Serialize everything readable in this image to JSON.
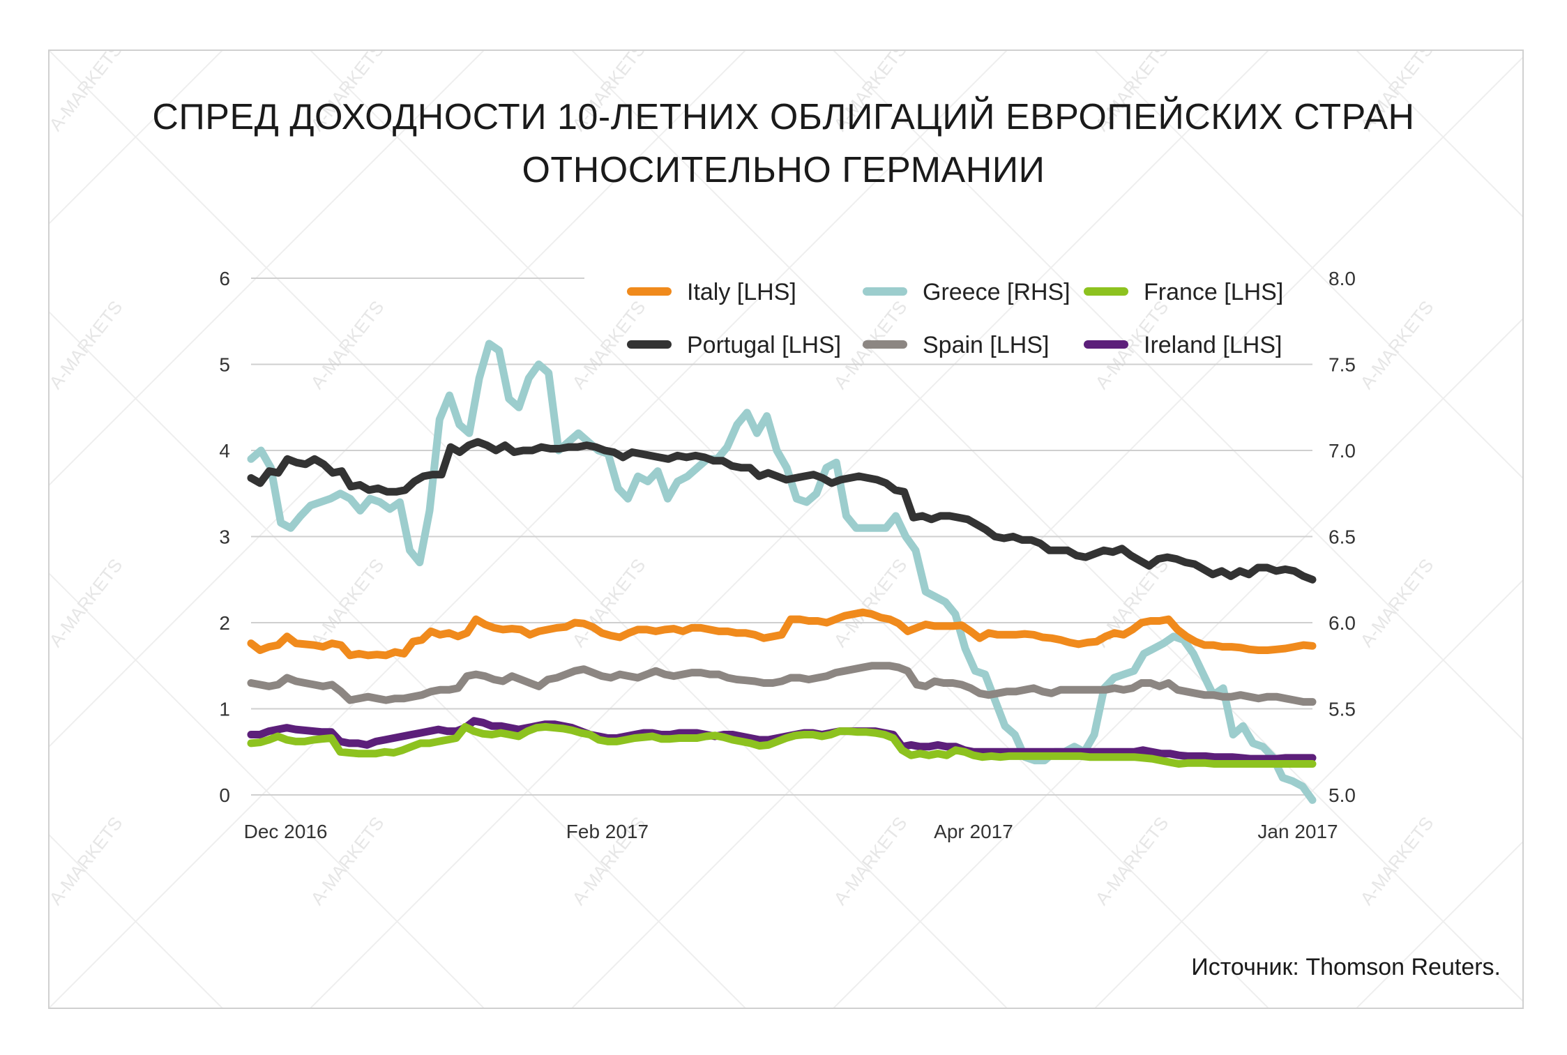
{
  "title": {
    "line1": "СПРЕД ДОХОДНОСТИ 10-ЛЕТНИХ ОБЛИГАЦИЙ ЕВРОПЕЙСКИХ СТРАН",
    "line2": "ОТНОСИТЕЛЬНО ГЕРМАНИИ"
  },
  "source": "Источник: Thomson Reuters.",
  "watermark": "A-MARKETS",
  "chart_data": {
    "type": "line",
    "title": "СПРЕД ДОХОДНОСТИ 10-ЛЕТНИХ ОБЛИГАЦИЙ ЕВРОПЕЙСКИХ СТРАН ОТНОСИТЕЛЬНО ГЕРМАНИИ",
    "x_ticks": [
      "Dec 2016",
      "Feb 2017",
      "Apr 2017",
      "Jan 2017"
    ],
    "x_tick_positions": [
      0.05,
      0.34,
      0.67,
      1.0
    ],
    "y_left_ticks": [
      "0",
      "1",
      "2",
      "3",
      "4",
      "5",
      "6"
    ],
    "y_right_ticks": [
      "5.0",
      "5.5",
      "6.0",
      "6.5",
      "7.0",
      "7.5",
      "8.0"
    ],
    "ylim_left": [
      0,
      6
    ],
    "ylim_right": [
      5.0,
      8.0
    ],
    "grid": true,
    "legend_position": "top-right",
    "series": [
      {
        "name": "Italy [LHS]",
        "axis": "left",
        "color": "#f08a1c",
        "values": [
          1.76,
          1.68,
          1.72,
          1.74,
          1.84,
          1.76,
          1.75,
          1.74,
          1.72,
          1.76,
          1.74,
          1.62,
          1.64,
          1.62,
          1.63,
          1.62,
          1.66,
          1.64,
          1.78,
          1.8,
          1.9,
          1.86,
          1.88,
          1.84,
          1.88,
          2.04,
          1.98,
          1.94,
          1.92,
          1.93,
          1.92,
          1.86,
          1.9,
          1.92,
          1.94,
          1.95,
          2.0,
          1.99,
          1.95,
          1.88,
          1.85,
          1.83,
          1.88,
          1.92,
          1.92,
          1.9,
          1.92,
          1.93,
          1.9,
          1.94,
          1.94,
          1.92,
          1.9,
          1.9,
          1.88,
          1.88,
          1.86,
          1.82,
          1.84,
          1.86,
          2.04,
          2.04,
          2.02,
          2.02,
          2.0,
          2.04,
          2.08,
          2.1,
          2.12,
          2.1,
          2.06,
          2.04,
          1.99,
          1.9,
          1.94,
          1.98,
          1.96,
          1.96,
          1.96,
          1.97,
          1.9,
          1.82,
          1.88,
          1.86,
          1.86,
          1.86,
          1.87,
          1.86,
          1.83,
          1.82,
          1.8,
          1.77,
          1.75,
          1.77,
          1.78,
          1.84,
          1.88,
          1.86,
          1.92,
          2.0,
          2.02,
          2.02,
          2.04,
          1.92,
          1.84,
          1.78,
          1.74,
          1.74,
          1.72,
          1.72,
          1.71,
          1.69,
          1.68,
          1.68,
          1.69,
          1.7,
          1.72,
          1.74,
          1.73
        ]
      },
      {
        "name": "Greece [RHS]",
        "axis": "right",
        "color": "#9ccdcd",
        "values": [
          6.95,
          7.0,
          6.9,
          6.58,
          6.55,
          6.62,
          6.68,
          6.7,
          6.72,
          6.75,
          6.72,
          6.65,
          6.72,
          6.7,
          6.66,
          6.7,
          6.42,
          6.35,
          6.65,
          7.18,
          7.32,
          7.15,
          7.1,
          7.42,
          7.62,
          7.58,
          7.3,
          7.25,
          7.42,
          7.5,
          7.45,
          7.0,
          7.05,
          7.1,
          7.05,
          7.0,
          6.98,
          6.78,
          6.72,
          6.85,
          6.82,
          6.88,
          6.72,
          6.82,
          6.85,
          6.9,
          6.95,
          6.95,
          7.02,
          7.15,
          7.22,
          7.1,
          7.2,
          7.0,
          6.9,
          6.72,
          6.7,
          6.75,
          6.9,
          6.93,
          6.62,
          6.55,
          6.55,
          6.55,
          6.55,
          6.62,
          6.5,
          6.42,
          6.18,
          6.15,
          6.12,
          6.05,
          5.85,
          5.72,
          5.7,
          5.55,
          5.4,
          5.35,
          5.22,
          5.2,
          5.2,
          5.25,
          5.25,
          5.28,
          5.25,
          5.35,
          5.62,
          5.68,
          5.7,
          5.72,
          5.82,
          5.85,
          5.88,
          5.92,
          5.9,
          5.82,
          5.7,
          5.58,
          5.62,
          5.35,
          5.4,
          5.3,
          5.28,
          5.22,
          5.1,
          5.08,
          5.05,
          4.97
        ]
      },
      {
        "name": "France [LHS]",
        "axis": "left",
        "color": "#8dc21f",
        "values": [
          0.6,
          0.61,
          0.64,
          0.68,
          0.64,
          0.62,
          0.62,
          0.64,
          0.65,
          0.66,
          0.5,
          0.49,
          0.48,
          0.48,
          0.48,
          0.5,
          0.49,
          0.52,
          0.56,
          0.6,
          0.6,
          0.62,
          0.64,
          0.66,
          0.79,
          0.74,
          0.71,
          0.7,
          0.72,
          0.7,
          0.68,
          0.74,
          0.78,
          0.79,
          0.78,
          0.77,
          0.75,
          0.72,
          0.7,
          0.64,
          0.62,
          0.62,
          0.64,
          0.66,
          0.67,
          0.68,
          0.65,
          0.65,
          0.66,
          0.66,
          0.66,
          0.68,
          0.69,
          0.67,
          0.64,
          0.62,
          0.6,
          0.57,
          0.58,
          0.62,
          0.66,
          0.69,
          0.7,
          0.7,
          0.68,
          0.7,
          0.74,
          0.74,
          0.73,
          0.73,
          0.72,
          0.7,
          0.66,
          0.52,
          0.46,
          0.48,
          0.46,
          0.48,
          0.46,
          0.52,
          0.5,
          0.46,
          0.44,
          0.45,
          0.44,
          0.45,
          0.45,
          0.45,
          0.45,
          0.45,
          0.45,
          0.45,
          0.45,
          0.45,
          0.44,
          0.44,
          0.44,
          0.44,
          0.44,
          0.44,
          0.43,
          0.42,
          0.4,
          0.38,
          0.36,
          0.37,
          0.37,
          0.37,
          0.36,
          0.36,
          0.36,
          0.36,
          0.36,
          0.36,
          0.36,
          0.36,
          0.36,
          0.36,
          0.36,
          0.36
        ]
      },
      {
        "name": "Portugal [LHS]",
        "axis": "left",
        "color": "#333333",
        "values": [
          3.68,
          3.62,
          3.76,
          3.74,
          3.9,
          3.86,
          3.84,
          3.9,
          3.84,
          3.74,
          3.76,
          3.58,
          3.6,
          3.54,
          3.56,
          3.52,
          3.52,
          3.54,
          3.64,
          3.7,
          3.72,
          3.72,
          4.04,
          3.98,
          4.06,
          4.1,
          4.06,
          4.0,
          4.06,
          3.98,
          4.0,
          4.0,
          4.04,
          4.02,
          4.02,
          4.04,
          4.04,
          4.06,
          4.04,
          4.0,
          3.98,
          3.92,
          3.98,
          3.96,
          3.94,
          3.92,
          3.9,
          3.94,
          3.92,
          3.94,
          3.92,
          3.88,
          3.88,
          3.82,
          3.8,
          3.8,
          3.7,
          3.74,
          3.7,
          3.66,
          3.68,
          3.7,
          3.72,
          3.68,
          3.62,
          3.66,
          3.68,
          3.7,
          3.68,
          3.66,
          3.62,
          3.54,
          3.52,
          3.22,
          3.24,
          3.2,
          3.24,
          3.24,
          3.22,
          3.2,
          3.14,
          3.08,
          3.0,
          2.98,
          3.0,
          2.96,
          2.96,
          2.92,
          2.84,
          2.84,
          2.84,
          2.78,
          2.76,
          2.8,
          2.84,
          2.82,
          2.86,
          2.78,
          2.72,
          2.66,
          2.74,
          2.76,
          2.74,
          2.7,
          2.68,
          2.62,
          2.56,
          2.6,
          2.54,
          2.6,
          2.56,
          2.64,
          2.64,
          2.6,
          2.62,
          2.6,
          2.54,
          2.5
        ]
      },
      {
        "name": "Spain [LHS]",
        "axis": "left",
        "color": "#8c8682",
        "values": [
          1.3,
          1.28,
          1.26,
          1.28,
          1.36,
          1.32,
          1.3,
          1.28,
          1.26,
          1.28,
          1.2,
          1.1,
          1.12,
          1.14,
          1.12,
          1.1,
          1.12,
          1.12,
          1.14,
          1.16,
          1.2,
          1.22,
          1.22,
          1.24,
          1.38,
          1.4,
          1.38,
          1.34,
          1.32,
          1.38,
          1.34,
          1.3,
          1.26,
          1.34,
          1.36,
          1.4,
          1.44,
          1.46,
          1.42,
          1.38,
          1.36,
          1.4,
          1.38,
          1.36,
          1.4,
          1.44,
          1.4,
          1.38,
          1.4,
          1.42,
          1.42,
          1.4,
          1.4,
          1.36,
          1.34,
          1.33,
          1.32,
          1.3,
          1.3,
          1.32,
          1.36,
          1.36,
          1.34,
          1.36,
          1.38,
          1.42,
          1.44,
          1.46,
          1.48,
          1.5,
          1.5,
          1.5,
          1.48,
          1.44,
          1.28,
          1.26,
          1.32,
          1.3,
          1.3,
          1.28,
          1.24,
          1.18,
          1.16,
          1.18,
          1.2,
          1.2,
          1.22,
          1.24,
          1.2,
          1.18,
          1.22,
          1.22,
          1.22,
          1.22,
          1.22,
          1.22,
          1.24,
          1.22,
          1.24,
          1.3,
          1.3,
          1.26,
          1.3,
          1.22,
          1.2,
          1.18,
          1.16,
          1.16,
          1.14,
          1.14,
          1.16,
          1.14,
          1.12,
          1.14,
          1.14,
          1.12,
          1.1,
          1.08,
          1.08
        ]
      },
      {
        "name": "Ireland [LHS]",
        "axis": "left",
        "color": "#5c1f7a",
        "values": [
          0.7,
          0.7,
          0.74,
          0.76,
          0.78,
          0.76,
          0.75,
          0.74,
          0.73,
          0.73,
          0.62,
          0.6,
          0.6,
          0.58,
          0.62,
          0.64,
          0.66,
          0.68,
          0.7,
          0.72,
          0.74,
          0.76,
          0.74,
          0.74,
          0.78,
          0.86,
          0.84,
          0.8,
          0.8,
          0.78,
          0.76,
          0.78,
          0.8,
          0.82,
          0.82,
          0.8,
          0.78,
          0.74,
          0.7,
          0.68,
          0.66,
          0.66,
          0.68,
          0.7,
          0.72,
          0.72,
          0.7,
          0.7,
          0.72,
          0.72,
          0.72,
          0.7,
          0.68,
          0.7,
          0.7,
          0.68,
          0.66,
          0.64,
          0.64,
          0.66,
          0.68,
          0.7,
          0.72,
          0.72,
          0.7,
          0.72,
          0.74,
          0.74,
          0.74,
          0.74,
          0.74,
          0.72,
          0.7,
          0.56,
          0.58,
          0.56,
          0.56,
          0.58,
          0.56,
          0.56,
          0.52,
          0.5,
          0.5,
          0.5,
          0.5,
          0.5,
          0.5,
          0.5,
          0.5,
          0.5,
          0.5,
          0.5,
          0.5,
          0.5,
          0.5,
          0.5,
          0.5,
          0.5,
          0.5,
          0.5,
          0.52,
          0.5,
          0.48,
          0.48,
          0.46,
          0.45,
          0.45,
          0.45,
          0.44,
          0.44,
          0.44,
          0.43,
          0.42,
          0.42,
          0.42,
          0.42,
          0.43,
          0.43,
          0.43,
          0.43
        ]
      }
    ]
  }
}
